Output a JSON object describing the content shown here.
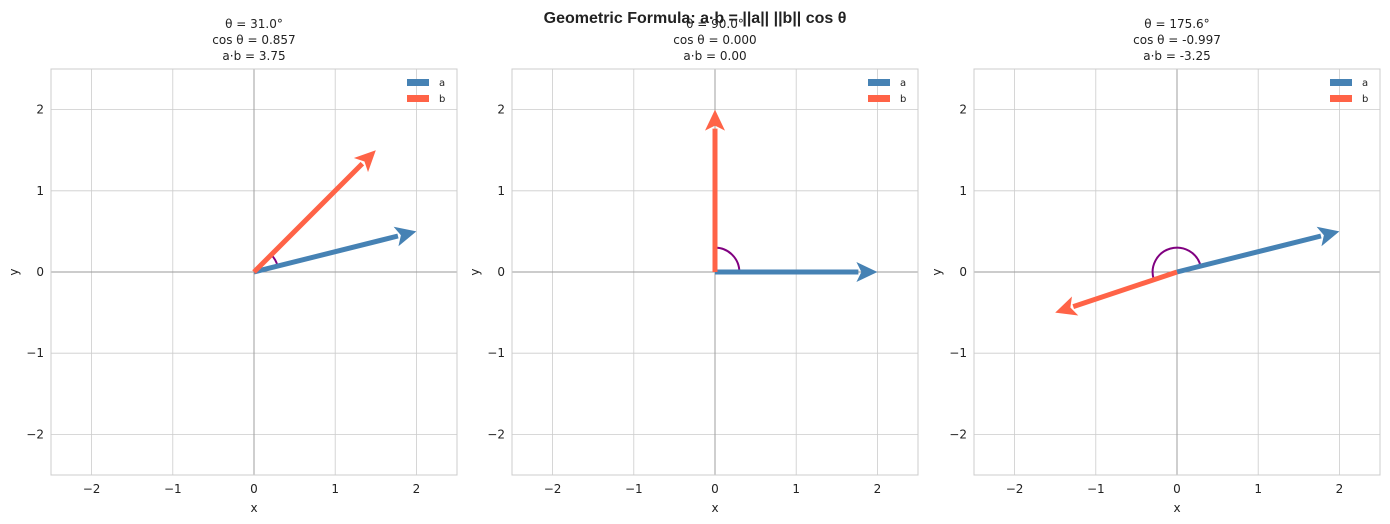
{
  "figure": {
    "suptitle": "Geometric Formula: a·b = ||a|| ||b|| cos θ"
  },
  "colors": {
    "a": "#4682b4",
    "b": "#ff6347",
    "arc": "#800080",
    "grid": "#cccccc",
    "axisline": "#999999",
    "frame": "#cccccc"
  },
  "chart_data": [
    {
      "type": "vector",
      "title_lines": [
        "θ = 31.0°",
        "cos θ = 0.857",
        "a·b = 3.75"
      ],
      "xlabel": "x",
      "ylabel": "y",
      "xlim": [
        -2.5,
        2.5
      ],
      "ylim": [
        -2.5,
        2.5
      ],
      "xticks": [
        -2,
        -1,
        0,
        1,
        2
      ],
      "yticks": [
        -2,
        -1,
        0,
        1,
        2
      ],
      "tick_labels": [
        "−2",
        "−1",
        "0",
        "1",
        "2"
      ],
      "grid": true,
      "legend": {
        "position": "upper-right",
        "entries": [
          "a",
          "b"
        ]
      },
      "vectors": [
        {
          "name": "a",
          "x": 2,
          "y": 0.5
        },
        {
          "name": "b",
          "x": 1.5,
          "y": 1.5
        }
      ],
      "angle_arc": {
        "theta1_deg": 14.0,
        "theta2_deg": 45.0,
        "radius": 0.3
      }
    },
    {
      "type": "vector",
      "title_lines": [
        "θ = 90.0°",
        "cos θ = 0.000",
        "a·b = 0.00"
      ],
      "xlabel": "x",
      "ylabel": "y",
      "xlim": [
        -2.5,
        2.5
      ],
      "ylim": [
        -2.5,
        2.5
      ],
      "xticks": [
        -2,
        -1,
        0,
        1,
        2
      ],
      "yticks": [
        -2,
        -1,
        0,
        1,
        2
      ],
      "tick_labels": [
        "−2",
        "−1",
        "0",
        "1",
        "2"
      ],
      "grid": true,
      "legend": {
        "position": "upper-right",
        "entries": [
          "a",
          "b"
        ]
      },
      "vectors": [
        {
          "name": "a",
          "x": 2,
          "y": 0
        },
        {
          "name": "b",
          "x": 0,
          "y": 2
        }
      ],
      "angle_arc": {
        "theta1_deg": 0.0,
        "theta2_deg": 90.0,
        "radius": 0.3
      }
    },
    {
      "type": "vector",
      "title_lines": [
        "θ = 175.6°",
        "cos θ = -0.997",
        "a·b = -3.25"
      ],
      "xlabel": "x",
      "ylabel": "y",
      "xlim": [
        -2.5,
        2.5
      ],
      "ylim": [
        -2.5,
        2.5
      ],
      "xticks": [
        -2,
        -1,
        0,
        1,
        2
      ],
      "yticks": [
        -2,
        -1,
        0,
        1,
        2
      ],
      "tick_labels": [
        "−2",
        "−1",
        "0",
        "1",
        "2"
      ],
      "grid": true,
      "legend": {
        "position": "upper-right",
        "entries": [
          "a",
          "b"
        ]
      },
      "vectors": [
        {
          "name": "a",
          "x": 2,
          "y": 0.5
        },
        {
          "name": "b",
          "x": -1.5,
          "y": -0.5
        }
      ],
      "angle_arc": {
        "theta1_deg": 14.0,
        "theta2_deg": 198.4,
        "radius": 0.3
      }
    }
  ]
}
